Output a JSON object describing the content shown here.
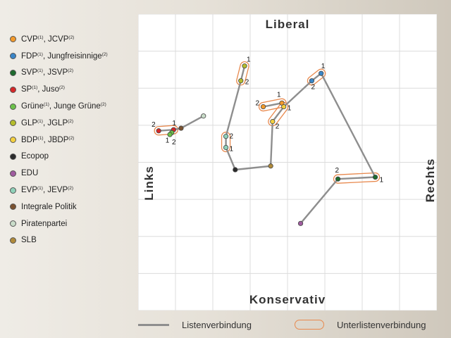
{
  "legend": [
    {
      "label": "CVP",
      "sup1": "(1)",
      "label2": ", JCVP",
      "sup2": "(2)",
      "color": "#f39a2b"
    },
    {
      "label": "FDP",
      "sup1": "(1)",
      "label2": ", Jungfreisinnige",
      "sup2": "(2)",
      "color": "#3a86c8"
    },
    {
      "label": "SVP",
      "sup1": "(1)",
      "label2": ", JSVP",
      "sup2": "(2)",
      "color": "#1e6b2e"
    },
    {
      "label": "SP",
      "sup1": "(1)",
      "label2": ", Juso",
      "sup2": "(2)",
      "color": "#d62728"
    },
    {
      "label": "Grüne",
      "sup1": "(1)",
      "label2": ", Junge Grüne",
      "sup2": "(2)",
      "color": "#6cc24a"
    },
    {
      "label": "GLP",
      "sup1": "(1)",
      "label2": ", JGLP",
      "sup2": "(2)",
      "color": "#b5bd2c"
    },
    {
      "label": "BDP",
      "sup1": "(1)",
      "label2": ", JBDP",
      "sup2": "(2)",
      "color": "#f4d03f"
    },
    {
      "label": "Ecopop",
      "sup1": "",
      "label2": "",
      "sup2": "",
      "color": "#2b2b2b"
    },
    {
      "label": "EDU",
      "sup1": "",
      "label2": "",
      "sup2": "",
      "color": "#a05ca0"
    },
    {
      "label": "EVP",
      "sup1": "(1)",
      "label2": ", JEVP",
      "sup2": "(2)",
      "color": "#8fd1b9"
    },
    {
      "label": "Integrale Politik",
      "sup1": "",
      "label2": "",
      "sup2": "",
      "color": "#7a5230"
    },
    {
      "label": "Piratenpartei",
      "sup1": "",
      "label2": "",
      "sup2": "",
      "color": "#c9dcc9"
    },
    {
      "label": "SLB",
      "sup1": "",
      "label2": "",
      "sup2": "",
      "color": "#b08a3a"
    }
  ],
  "axes": {
    "top": "Liberal",
    "bottom": "Konservativ",
    "left": "Links",
    "right": "Rechts"
  },
  "footer": {
    "line_label": "Listenverbindung",
    "pill_label": "Unterlistenverbindung"
  },
  "chart_data": {
    "type": "scatter",
    "xlim": [
      0,
      8
    ],
    "ylim": [
      0,
      8
    ],
    "grid": true,
    "line_color": "#8e8e8e",
    "pill_color": "#e8894e",
    "points": {
      "SP1": {
        "x": 0.55,
        "y": 4.85,
        "color": "#d62728",
        "label": "2"
      },
      "SP2": {
        "x": 0.95,
        "y": 4.88,
        "color": "#d62728",
        "label": "1"
      },
      "GR1": {
        "x": 0.9,
        "y": 4.8,
        "color": "#6cc24a",
        "label": "1"
      },
      "GR2": {
        "x": 0.85,
        "y": 4.75,
        "color": "#6cc24a",
        "label": "2"
      },
      "IP": {
        "x": 1.15,
        "y": 4.92,
        "color": "#7a5230",
        "label": ""
      },
      "PIR": {
        "x": 1.75,
        "y": 5.25,
        "color": "#c9dcc9",
        "label": ""
      },
      "EVP2": {
        "x": 2.35,
        "y": 4.7,
        "color": "#8fd1b9",
        "label": "2"
      },
      "EVP1": {
        "x": 2.35,
        "y": 4.4,
        "color": "#8fd1b9",
        "label": "1"
      },
      "ECO": {
        "x": 2.6,
        "y": 3.8,
        "color": "#2b2b2b",
        "label": ""
      },
      "GLP1": {
        "x": 2.85,
        "y": 6.6,
        "color": "#b5bd2c",
        "label": "1"
      },
      "GLP2": {
        "x": 2.75,
        "y": 6.2,
        "color": "#b5bd2c",
        "label": "2"
      },
      "SLB": {
        "x": 3.55,
        "y": 3.9,
        "color": "#b08a3a",
        "label": ""
      },
      "BDP2": {
        "x": 3.6,
        "y": 5.1,
        "color": "#f4d03f",
        "label": "2"
      },
      "CVP2": {
        "x": 3.35,
        "y": 5.5,
        "color": "#f39a2b",
        "label": "2"
      },
      "CVP1": {
        "x": 3.85,
        "y": 5.6,
        "color": "#f39a2b",
        "label": "1"
      },
      "BDP1": {
        "x": 3.9,
        "y": 5.5,
        "color": "#f4d03f",
        "label": "1"
      },
      "FDP1": {
        "x": 4.9,
        "y": 6.4,
        "color": "#3a86c8",
        "label": "1"
      },
      "FDP2": {
        "x": 4.65,
        "y": 6.2,
        "color": "#3a86c8",
        "label": "2"
      },
      "SVP1": {
        "x": 6.35,
        "y": 3.6,
        "color": "#1e6b2e",
        "label": "1"
      },
      "SVP2": {
        "x": 5.35,
        "y": 3.55,
        "color": "#1e6b2e",
        "label": "2"
      },
      "EDU": {
        "x": 4.35,
        "y": 2.35,
        "color": "#a05ca0",
        "label": ""
      }
    },
    "list_connections": [
      [
        "SP1",
        "SP2",
        "IP",
        "PIR"
      ],
      [
        "GLP1",
        "GLP2",
        "EVP2",
        "EVP1",
        "ECO",
        "SLB",
        "BDP2",
        "BDP1",
        "CVP1",
        "CVP2"
      ],
      [
        "BDP1",
        "FDP2",
        "FDP1",
        "SVP1",
        "SVP2",
        "EDU"
      ]
    ],
    "sublist_connections": [
      [
        "SP1",
        "SP2"
      ],
      [
        "GLP1",
        "GLP2"
      ],
      [
        "EVP1",
        "EVP2"
      ],
      [
        "CVP1",
        "CVP2"
      ],
      [
        "BDP1",
        "BDP2"
      ],
      [
        "FDP1",
        "FDP2"
      ],
      [
        "SVP1",
        "SVP2"
      ]
    ]
  }
}
